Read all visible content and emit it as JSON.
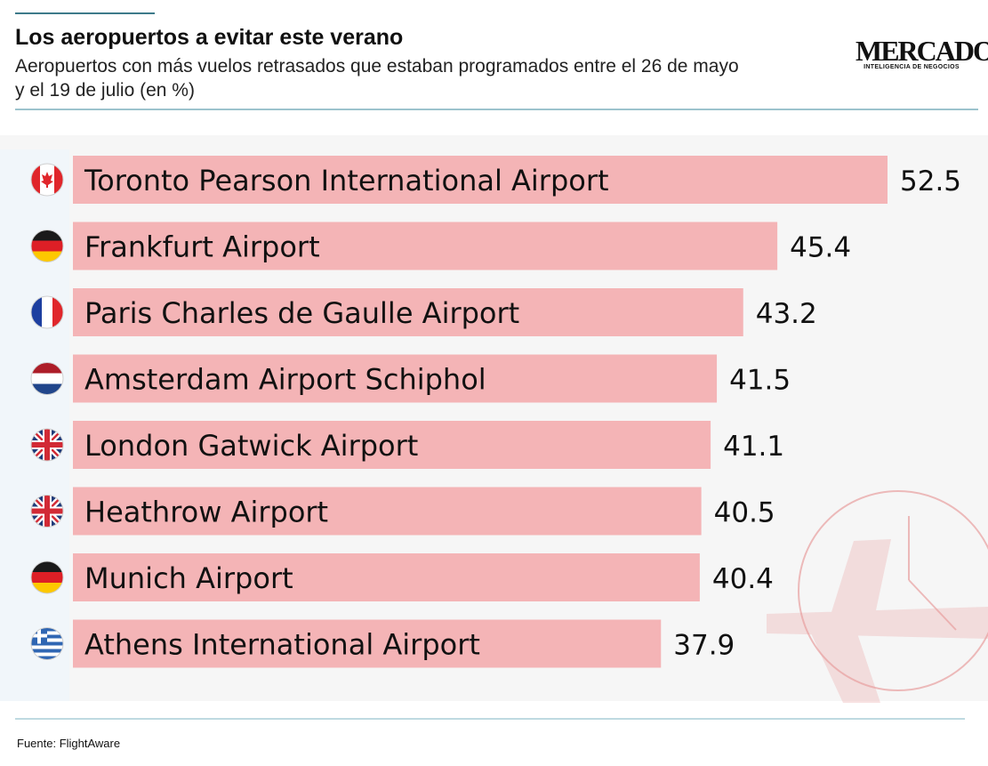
{
  "header": {
    "title": "Los aeropuertos a evitar este verano",
    "subtitle": "Aeropuertos con más vuelos retrasados que estaban programados entre el 26 de mayo y el 19 de julio (en %)"
  },
  "logo": {
    "name": "MERCADO",
    "tagline_prefix": "INTELIGENCIA DE ",
    "tagline_bold": "NEGOCIOS"
  },
  "source": "Fuente: FlightAware",
  "colors": {
    "bar": "#f4b4b6",
    "watermark": "#e8a0a0",
    "rule": "#9cc3cd"
  },
  "chart_data": {
    "type": "bar",
    "orientation": "horizontal",
    "categories": [
      "Toronto Pearson International Airport",
      "Frankfurt Airport",
      "Paris Charles de Gaulle Airport",
      "Amsterdam Airport Schiphol",
      "London Gatwick Airport",
      "Heathrow Airport",
      "Munich Airport",
      "Athens International Airport"
    ],
    "values": [
      52.5,
      45.4,
      43.2,
      41.5,
      41.1,
      40.5,
      40.4,
      37.9
    ],
    "value_labels": [
      "52.5",
      "45.4",
      "43.2",
      "41.5",
      "41.1",
      "40.5",
      "40.4",
      "37.9"
    ],
    "flags": [
      "canada-flag-icon",
      "germany-flag-icon",
      "france-flag-icon",
      "netherlands-flag-icon",
      "uk-flag-icon",
      "uk-flag-icon",
      "germany-flag-icon",
      "greece-flag-icon"
    ],
    "xlim": [
      0,
      52.5
    ],
    "grid": false,
    "legend": "none"
  }
}
